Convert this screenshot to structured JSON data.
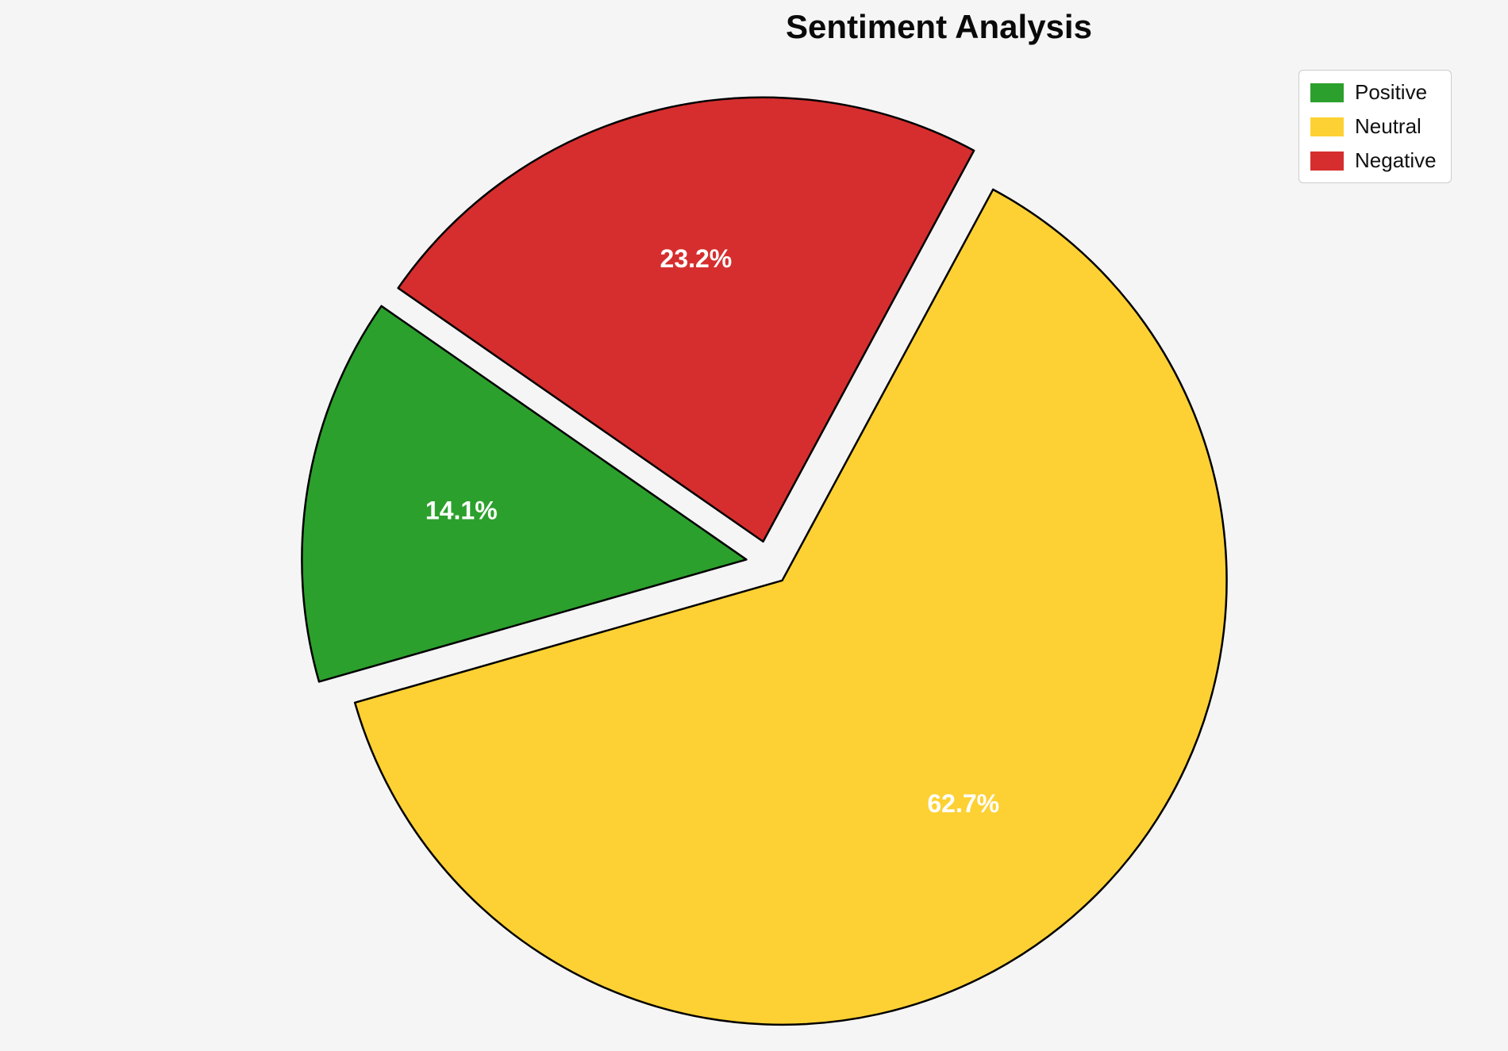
{
  "chart_data": {
    "type": "pie",
    "title": "Sentiment Analysis",
    "slices": [
      {
        "label": "Positive",
        "value": 14.1,
        "pct_label": "14.1%",
        "color": "#2ca02c"
      },
      {
        "label": "Neutral",
        "value": 62.7,
        "pct_label": "62.7%",
        "color": "#fdd134"
      },
      {
        "label": "Negative",
        "value": 23.2,
        "pct_label": "23.2%",
        "color": "#d62e2e"
      }
    ],
    "legend_position": "upper right",
    "start_angle": 145.2,
    "counterclock": true,
    "explode": 0.05,
    "pct_distance": 0.65,
    "edge_color": "#000000",
    "pct_label_color": "#ffffff",
    "background": "#f5f5f5"
  }
}
